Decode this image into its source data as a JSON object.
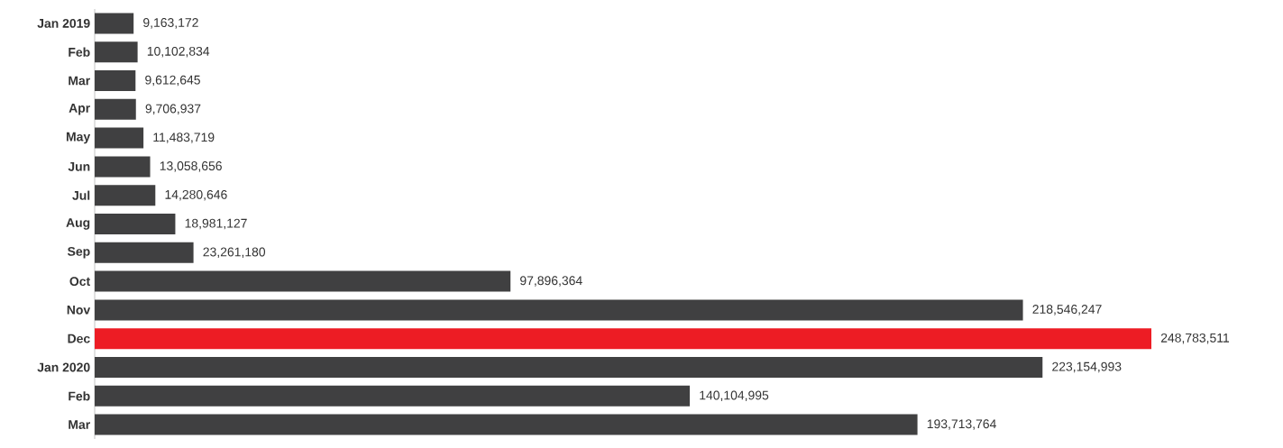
{
  "chart_data": {
    "type": "bar",
    "orientation": "horizontal",
    "categories": [
      "Jan 2019",
      "Feb",
      "Mar",
      "Apr",
      "May",
      "Jun",
      "Jul",
      "Aug",
      "Sep",
      "Oct",
      "Nov",
      "Dec",
      "Jan 2020",
      "Feb",
      "Mar"
    ],
    "values": [
      9163172,
      10102834,
      9612645,
      9706937,
      11483719,
      13058656,
      14280646,
      18981127,
      23261180,
      97896364,
      218546247,
      248783511,
      223154993,
      140104995,
      193713764
    ],
    "value_labels": [
      "9,163,172",
      "10,102,834",
      "9,612,645",
      "9,706,937",
      "11,483,719",
      "13,058,656",
      "14,280,646",
      "18,981,127",
      "23,261,180",
      "97,896,364",
      "218,546,247",
      "248,783,511",
      "223,154,993",
      "140,104,995",
      "193,713,764"
    ],
    "colors": [
      "#404041",
      "#404041",
      "#404041",
      "#404041",
      "#404041",
      "#404041",
      "#404041",
      "#404041",
      "#404041",
      "#404041",
      "#404041",
      "#ed1c24",
      "#404041",
      "#404041",
      "#404041"
    ]
  }
}
